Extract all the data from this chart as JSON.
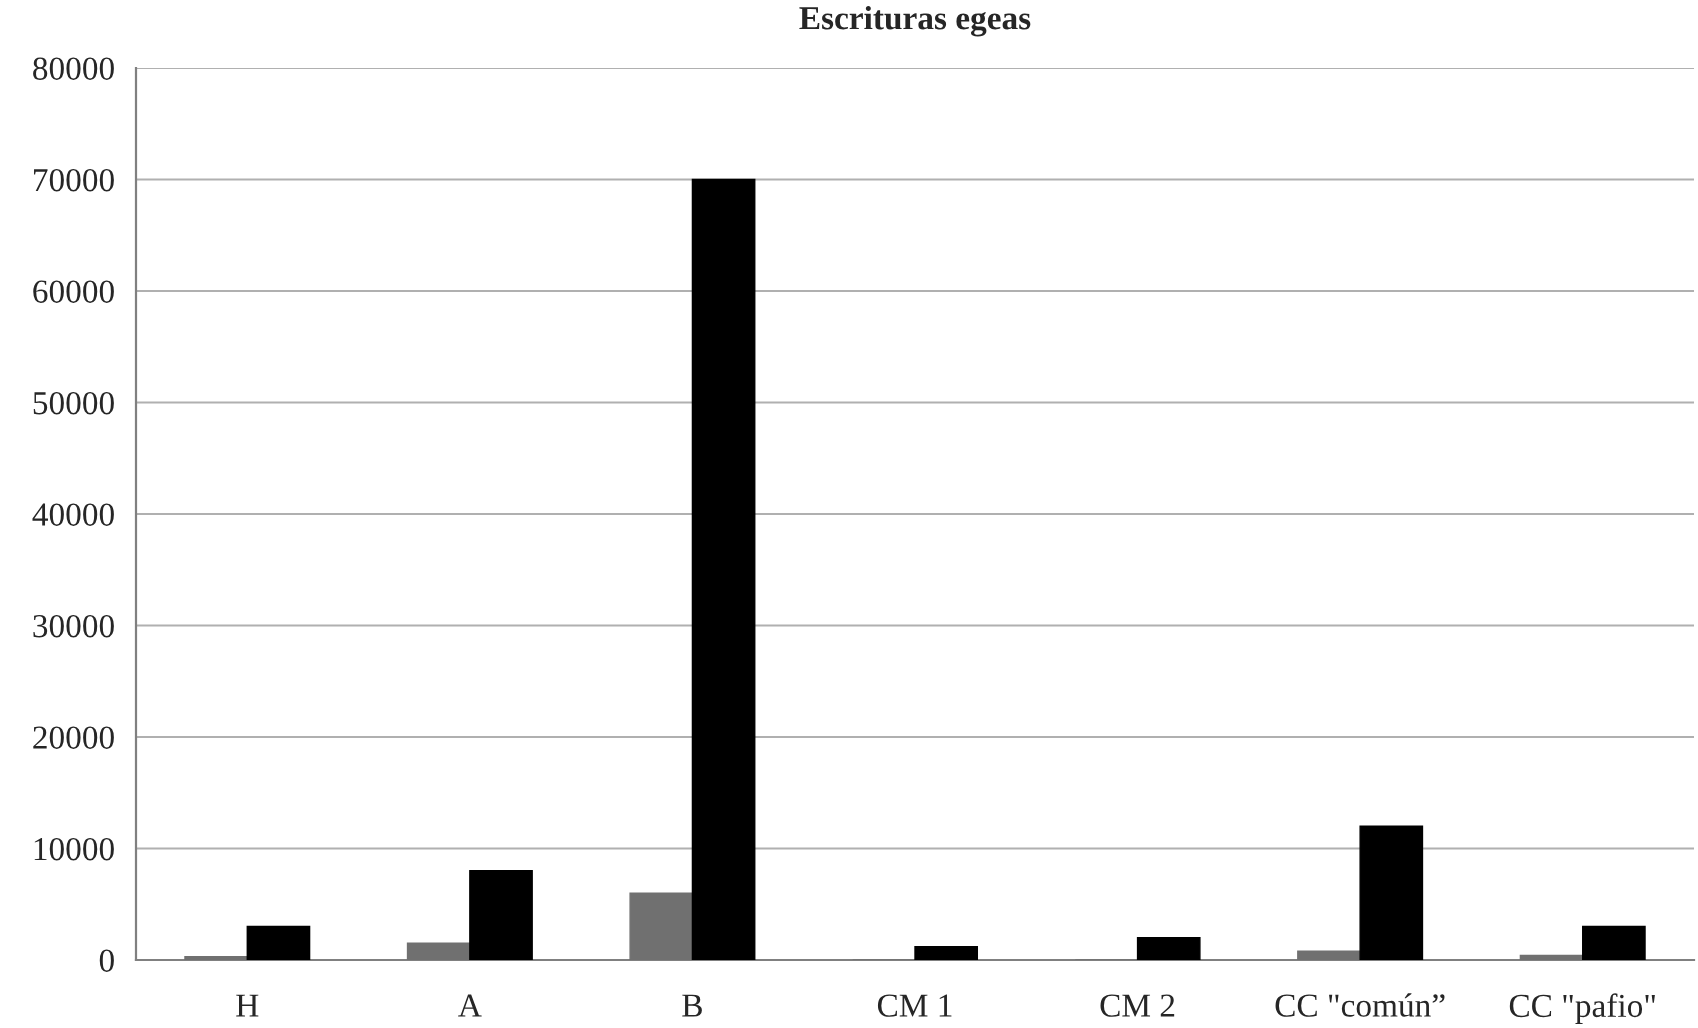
{
  "chart_data": {
    "type": "bar",
    "title": "Escrituras egeas",
    "categories": [
      "H",
      "A",
      "B",
      "CM 1",
      "CM 2",
      "CC \"común”",
      "CC \"pafio\""
    ],
    "series": [
      {
        "color": "#707070",
        "values": [
          300,
          1500,
          6000,
          0,
          0,
          800,
          400
        ]
      },
      {
        "color": "#000000",
        "values": [
          3000,
          8000,
          70000,
          1200,
          2000,
          12000,
          3000
        ]
      }
    ],
    "ylim": [
      0,
      80000
    ],
    "yticks": [
      0,
      10000,
      20000,
      30000,
      40000,
      50000,
      60000,
      70000,
      80000
    ],
    "grid": "y"
  }
}
